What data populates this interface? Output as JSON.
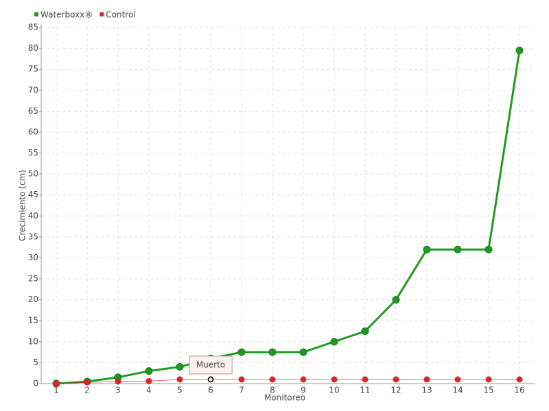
{
  "chart_data": {
    "type": "line",
    "x_label": "Monitoreo",
    "y_label": "Crecimiento (cm)",
    "categories": [
      "1",
      "2",
      "3",
      "4",
      "5",
      "6",
      "7",
      "8",
      "9",
      "10",
      "11",
      "12",
      "13",
      "14",
      "15",
      "16"
    ],
    "series": [
      {
        "name": "Waterboxx®",
        "color": "#1f9a1f",
        "values": [
          0,
          0.5,
          1.5,
          3,
          4,
          6,
          7.5,
          7.5,
          7.5,
          10,
          12.5,
          20,
          32,
          32,
          32,
          79.5
        ]
      },
      {
        "name": "Control",
        "color": "#e3212b",
        "values": [
          0,
          0.3,
          0.5,
          0.6,
          1,
          1,
          1,
          1,
          1,
          1,
          1,
          1,
          1,
          1,
          1,
          1
        ]
      }
    ],
    "annotation": {
      "text": "Muerto",
      "series": 1,
      "index": 5
    },
    "ylim": [
      0,
      85
    ],
    "yticks": [
      0,
      5,
      10,
      15,
      20,
      25,
      30,
      35,
      40,
      45,
      50,
      55,
      60,
      65,
      70,
      75,
      80,
      85
    ],
    "grid": true,
    "legend": "top-left"
  }
}
